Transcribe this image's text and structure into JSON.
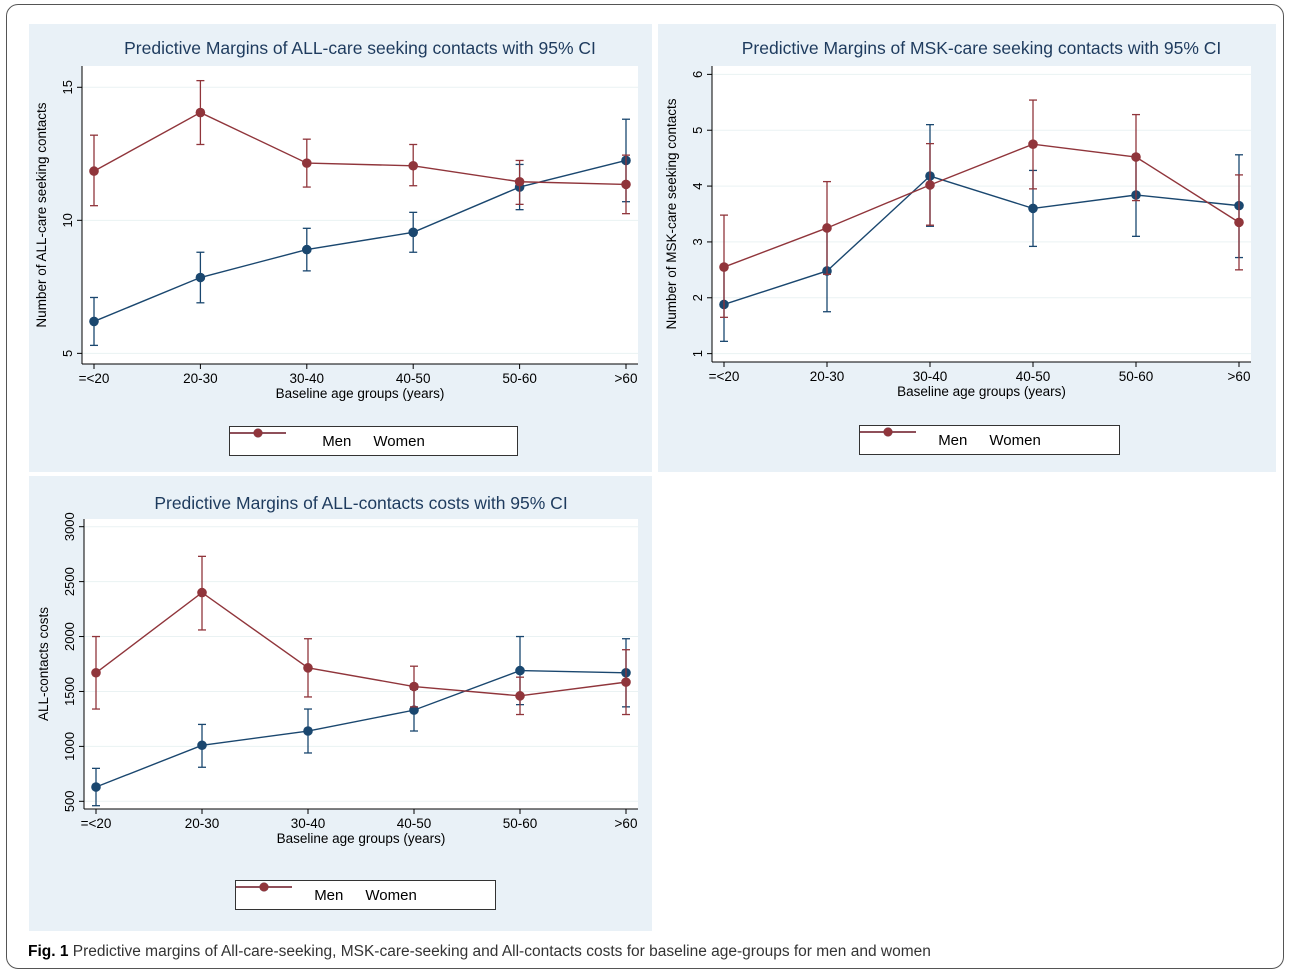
{
  "caption": {
    "label": "Fig. 1",
    "text": "Predictive margins of All-care-seeking, MSK-care-seeking and All-contacts costs for baseline age-groups for men and women"
  },
  "colors": {
    "men": "#1a476f",
    "women": "#90353b",
    "panel_bg": "#e9f1f7",
    "plot_bg": "#ffffff",
    "grid": "#eaf2f3",
    "title": "#1e3b5e"
  },
  "chart_data": [
    {
      "type": "line",
      "title": "Predictive Margins of ALL-care seeking contacts with 95% CI",
      "xlabel": "Baseline age groups (years)",
      "ylabel": "Number of ALL-care seeking contacts",
      "categories": [
        "=<20",
        "20-30",
        "30-40",
        "40-50",
        "50-60",
        ">60"
      ],
      "ylim": [
        4.6,
        15.8
      ],
      "yticks": [
        5,
        10,
        15
      ],
      "grid": true,
      "legend": "bottom",
      "series": [
        {
          "name": "Men",
          "values": [
            6.2,
            7.85,
            8.9,
            9.55,
            11.25,
            12.25
          ],
          "ci_low": [
            5.3,
            6.9,
            8.1,
            8.8,
            10.4,
            10.7
          ],
          "ci_high": [
            7.1,
            8.8,
            9.7,
            10.3,
            12.1,
            13.8
          ]
        },
        {
          "name": "Women",
          "values": [
            11.85,
            14.05,
            12.15,
            12.05,
            11.45,
            11.35
          ],
          "ci_low": [
            10.55,
            12.85,
            11.25,
            11.3,
            10.6,
            10.25
          ],
          "ci_high": [
            13.2,
            15.25,
            13.05,
            12.85,
            12.25,
            12.45
          ]
        }
      ]
    },
    {
      "type": "line",
      "title": "Predictive Margins of MSK-care seeking contacts with 95% CI",
      "xlabel": "Baseline age groups (years)",
      "ylabel": "Number of MSK-care seeking contacts",
      "categories": [
        "=<20",
        "20-30",
        "30-40",
        "40-50",
        "50-60",
        ">60"
      ],
      "ylim": [
        0.85,
        6.15
      ],
      "yticks": [
        1,
        2,
        3,
        4,
        5,
        6
      ],
      "grid": true,
      "legend": "bottom",
      "series": [
        {
          "name": "Men",
          "values": [
            1.88,
            2.48,
            4.18,
            3.6,
            3.84,
            3.65
          ],
          "ci_low": [
            1.22,
            1.75,
            3.28,
            2.92,
            3.1,
            2.72
          ],
          "ci_high": [
            2.55,
            3.22,
            5.1,
            4.28,
            4.56,
            4.56
          ]
        },
        {
          "name": "Women",
          "values": [
            2.55,
            3.25,
            4.02,
            4.75,
            4.52,
            3.35
          ],
          "ci_low": [
            1.65,
            2.42,
            3.3,
            3.95,
            3.74,
            2.5
          ],
          "ci_high": [
            3.48,
            4.08,
            4.76,
            5.54,
            5.28,
            4.2
          ]
        }
      ]
    },
    {
      "type": "line",
      "title": "Predictive Margins of ALL-contacts costs with 95% CI",
      "xlabel": "Baseline age groups (years)",
      "ylabel": "ALL-contacts costs",
      "categories": [
        "=<20",
        "20-30",
        "30-40",
        "40-50",
        "50-60",
        ">60"
      ],
      "ylim": [
        430,
        3070
      ],
      "yticks": [
        500,
        1000,
        1500,
        2000,
        2500,
        3000
      ],
      "grid": true,
      "legend": "bottom",
      "series": [
        {
          "name": "Men",
          "values": [
            630,
            1010,
            1140,
            1330,
            1690,
            1670
          ],
          "ci_low": [
            460,
            810,
            940,
            1140,
            1380,
            1360
          ],
          "ci_high": [
            800,
            1200,
            1340,
            1520,
            2000,
            1980
          ]
        },
        {
          "name": "Women",
          "values": [
            1670,
            2400,
            1715,
            1545,
            1460,
            1585
          ],
          "ci_low": [
            1340,
            2060,
            1450,
            1360,
            1290,
            1290
          ],
          "ci_high": [
            2000,
            2730,
            1980,
            1730,
            1630,
            1880
          ]
        }
      ]
    }
  ]
}
